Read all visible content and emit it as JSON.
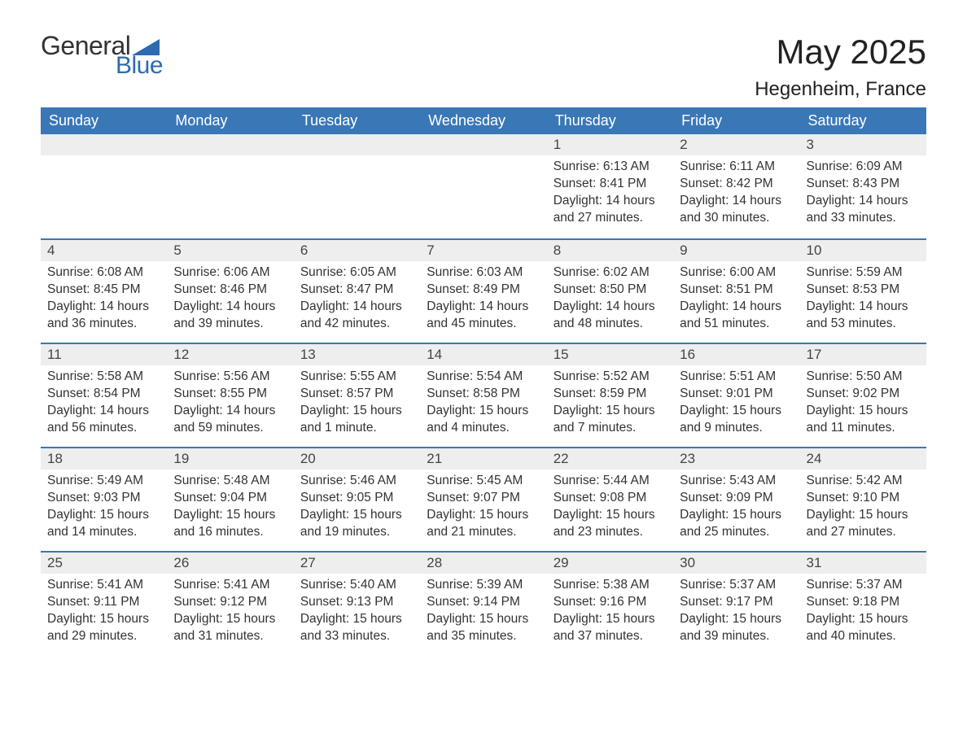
{
  "logo": {
    "general": "General",
    "blue": "Blue"
  },
  "title": "May 2025",
  "location": "Hegenheim, France",
  "colors": {
    "header_bg": "#3a77b7",
    "header_text": "#ffffff",
    "daynum_bg": "#eeeeee",
    "daynum_border": "#3a77b7",
    "text": "#333333",
    "logo_blue": "#2c6bb0"
  },
  "weekdays": [
    "Sunday",
    "Monday",
    "Tuesday",
    "Wednesday",
    "Thursday",
    "Friday",
    "Saturday"
  ],
  "first_weekday_index": 4,
  "days": [
    {
      "n": 1,
      "sunrise": "6:13 AM",
      "sunset": "8:41 PM",
      "daylight": "14 hours and 27 minutes."
    },
    {
      "n": 2,
      "sunrise": "6:11 AM",
      "sunset": "8:42 PM",
      "daylight": "14 hours and 30 minutes."
    },
    {
      "n": 3,
      "sunrise": "6:09 AM",
      "sunset": "8:43 PM",
      "daylight": "14 hours and 33 minutes."
    },
    {
      "n": 4,
      "sunrise": "6:08 AM",
      "sunset": "8:45 PM",
      "daylight": "14 hours and 36 minutes."
    },
    {
      "n": 5,
      "sunrise": "6:06 AM",
      "sunset": "8:46 PM",
      "daylight": "14 hours and 39 minutes."
    },
    {
      "n": 6,
      "sunrise": "6:05 AM",
      "sunset": "8:47 PM",
      "daylight": "14 hours and 42 minutes."
    },
    {
      "n": 7,
      "sunrise": "6:03 AM",
      "sunset": "8:49 PM",
      "daylight": "14 hours and 45 minutes."
    },
    {
      "n": 8,
      "sunrise": "6:02 AM",
      "sunset": "8:50 PM",
      "daylight": "14 hours and 48 minutes."
    },
    {
      "n": 9,
      "sunrise": "6:00 AM",
      "sunset": "8:51 PM",
      "daylight": "14 hours and 51 minutes."
    },
    {
      "n": 10,
      "sunrise": "5:59 AM",
      "sunset": "8:53 PM",
      "daylight": "14 hours and 53 minutes."
    },
    {
      "n": 11,
      "sunrise": "5:58 AM",
      "sunset": "8:54 PM",
      "daylight": "14 hours and 56 minutes."
    },
    {
      "n": 12,
      "sunrise": "5:56 AM",
      "sunset": "8:55 PM",
      "daylight": "14 hours and 59 minutes."
    },
    {
      "n": 13,
      "sunrise": "5:55 AM",
      "sunset": "8:57 PM",
      "daylight": "15 hours and 1 minute."
    },
    {
      "n": 14,
      "sunrise": "5:54 AM",
      "sunset": "8:58 PM",
      "daylight": "15 hours and 4 minutes."
    },
    {
      "n": 15,
      "sunrise": "5:52 AM",
      "sunset": "8:59 PM",
      "daylight": "15 hours and 7 minutes."
    },
    {
      "n": 16,
      "sunrise": "5:51 AM",
      "sunset": "9:01 PM",
      "daylight": "15 hours and 9 minutes."
    },
    {
      "n": 17,
      "sunrise": "5:50 AM",
      "sunset": "9:02 PM",
      "daylight": "15 hours and 11 minutes."
    },
    {
      "n": 18,
      "sunrise": "5:49 AM",
      "sunset": "9:03 PM",
      "daylight": "15 hours and 14 minutes."
    },
    {
      "n": 19,
      "sunrise": "5:48 AM",
      "sunset": "9:04 PM",
      "daylight": "15 hours and 16 minutes."
    },
    {
      "n": 20,
      "sunrise": "5:46 AM",
      "sunset": "9:05 PM",
      "daylight": "15 hours and 19 minutes."
    },
    {
      "n": 21,
      "sunrise": "5:45 AM",
      "sunset": "9:07 PM",
      "daylight": "15 hours and 21 minutes."
    },
    {
      "n": 22,
      "sunrise": "5:44 AM",
      "sunset": "9:08 PM",
      "daylight": "15 hours and 23 minutes."
    },
    {
      "n": 23,
      "sunrise": "5:43 AM",
      "sunset": "9:09 PM",
      "daylight": "15 hours and 25 minutes."
    },
    {
      "n": 24,
      "sunrise": "5:42 AM",
      "sunset": "9:10 PM",
      "daylight": "15 hours and 27 minutes."
    },
    {
      "n": 25,
      "sunrise": "5:41 AM",
      "sunset": "9:11 PM",
      "daylight": "15 hours and 29 minutes."
    },
    {
      "n": 26,
      "sunrise": "5:41 AM",
      "sunset": "9:12 PM",
      "daylight": "15 hours and 31 minutes."
    },
    {
      "n": 27,
      "sunrise": "5:40 AM",
      "sunset": "9:13 PM",
      "daylight": "15 hours and 33 minutes."
    },
    {
      "n": 28,
      "sunrise": "5:39 AM",
      "sunset": "9:14 PM",
      "daylight": "15 hours and 35 minutes."
    },
    {
      "n": 29,
      "sunrise": "5:38 AM",
      "sunset": "9:16 PM",
      "daylight": "15 hours and 37 minutes."
    },
    {
      "n": 30,
      "sunrise": "5:37 AM",
      "sunset": "9:17 PM",
      "daylight": "15 hours and 39 minutes."
    },
    {
      "n": 31,
      "sunrise": "5:37 AM",
      "sunset": "9:18 PM",
      "daylight": "15 hours and 40 minutes."
    }
  ],
  "labels": {
    "sunrise": "Sunrise:",
    "sunset": "Sunset:",
    "daylight": "Daylight:"
  }
}
